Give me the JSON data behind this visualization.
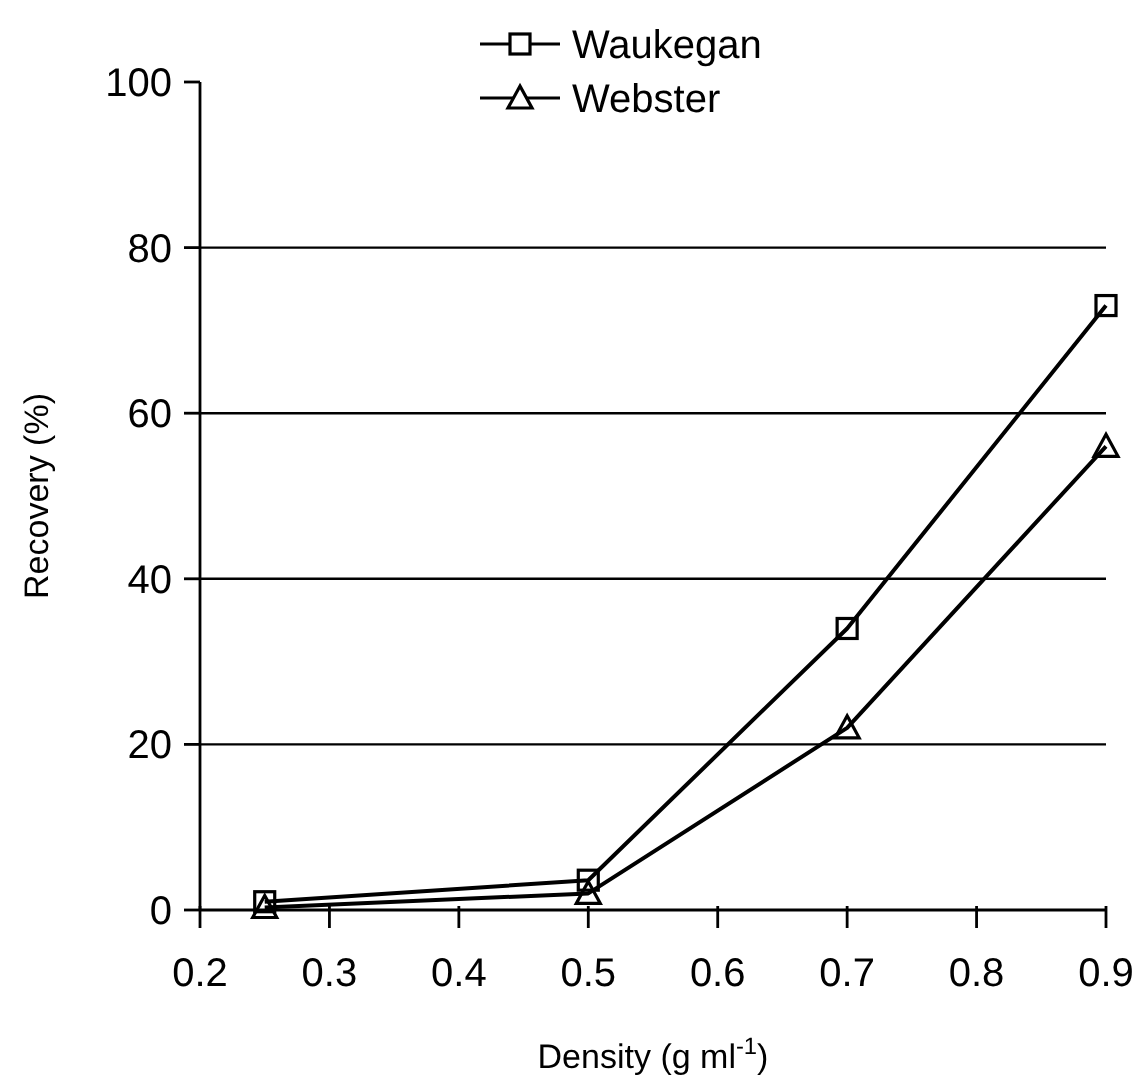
{
  "chart_data": {
    "type": "line",
    "xlabel": "Density (g ml$^{-1}$)",
    "ylabel": "Recovery (%)",
    "x": [
      0.25,
      0.5,
      0.7,
      0.9
    ],
    "series": [
      {
        "name": "Waukegan",
        "color": "#000000",
        "marker": "square",
        "values": [
          1,
          3.6,
          34,
          73
        ]
      },
      {
        "name": "Webster",
        "color": "#000000",
        "marker": "triangle",
        "values": [
          0.3,
          2,
          22,
          56
        ]
      }
    ],
    "xlim": [
      0.2,
      0.9
    ],
    "xticks": [
      0.2,
      0.3,
      0.4,
      0.5,
      0.6,
      0.7,
      0.8,
      0.9
    ],
    "ylim": [
      0,
      100
    ],
    "yticks": [
      0,
      20,
      40,
      60,
      80,
      100
    ],
    "grid": "y",
    "legend": "top",
    "line_style": "solid"
  }
}
